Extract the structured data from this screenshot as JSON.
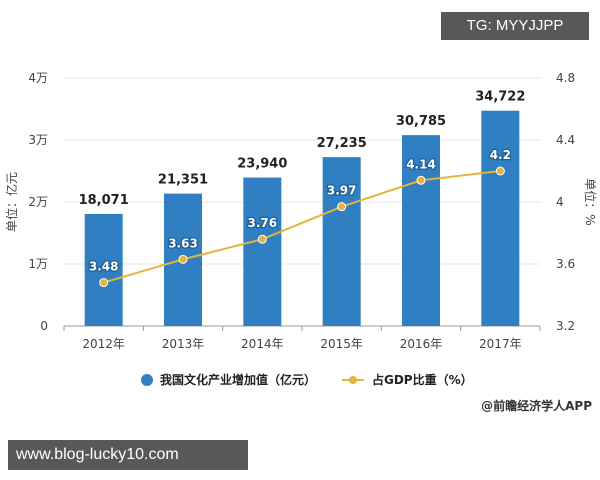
{
  "chart_data": {
    "type": "bar",
    "categories": [
      "2012年",
      "2013年",
      "2014年",
      "2015年",
      "2016年",
      "2017年"
    ],
    "series": [
      {
        "name": "我国文化产业增加值（亿元）",
        "type": "bar",
        "axis": "left",
        "color": "#2f7fc2",
        "values": [
          18071,
          21351,
          23940,
          27235,
          30785,
          34722
        ],
        "labels": [
          "18,071",
          "21,351",
          "23,940",
          "27,235",
          "30,785",
          "34,722"
        ]
      },
      {
        "name": "占GDP比重（%）",
        "type": "line",
        "axis": "right",
        "color": "#e4b43b",
        "values": [
          3.48,
          3.63,
          3.76,
          3.97,
          4.14,
          4.2
        ],
        "labels": [
          "3.48",
          "3.63",
          "3.76",
          "3.97",
          "4.14",
          "4.2"
        ]
      }
    ],
    "ylabel": "单位：亿元",
    "y2label": "单位：%",
    "ylim": [
      0,
      40000
    ],
    "y2lim": [
      3.2,
      4.8
    ],
    "yticks": [
      {
        "value": 0,
        "label": "0"
      },
      {
        "value": 10000,
        "label": "1万"
      },
      {
        "value": 20000,
        "label": "2万"
      },
      {
        "value": 30000,
        "label": "3万"
      },
      {
        "value": 40000,
        "label": "4万"
      }
    ],
    "y2ticks": [
      {
        "value": 3.2,
        "label": "3.2"
      },
      {
        "value": 3.6,
        "label": "3.6"
      },
      {
        "value": 4,
        "label": "4"
      },
      {
        "value": 4.4,
        "label": "4.4"
      },
      {
        "value": 4.8,
        "label": "4.8"
      }
    ],
    "grid": true,
    "legend": "bottom"
  },
  "source": "@前瞻经济学人APP",
  "watermark_tag": "TG: MYYJJPP",
  "watermark_site": "www.blog-lucky10.com"
}
